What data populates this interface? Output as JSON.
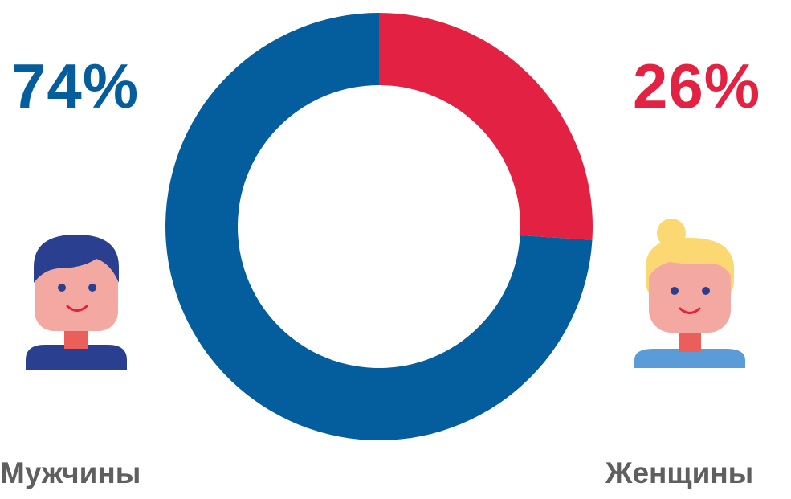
{
  "chart_data": {
    "type": "pie",
    "variant": "donut",
    "categories": [
      "Мужчины",
      "Женщины"
    ],
    "values": [
      74,
      26
    ],
    "value_labels": [
      "74%",
      "26%"
    ],
    "colors": [
      "#045d9c",
      "#e32243"
    ],
    "start": "top",
    "direction": "clockwise",
    "legend": "sides"
  },
  "icons": {
    "male": "man-avatar-icon",
    "female": "woman-avatar-icon"
  }
}
